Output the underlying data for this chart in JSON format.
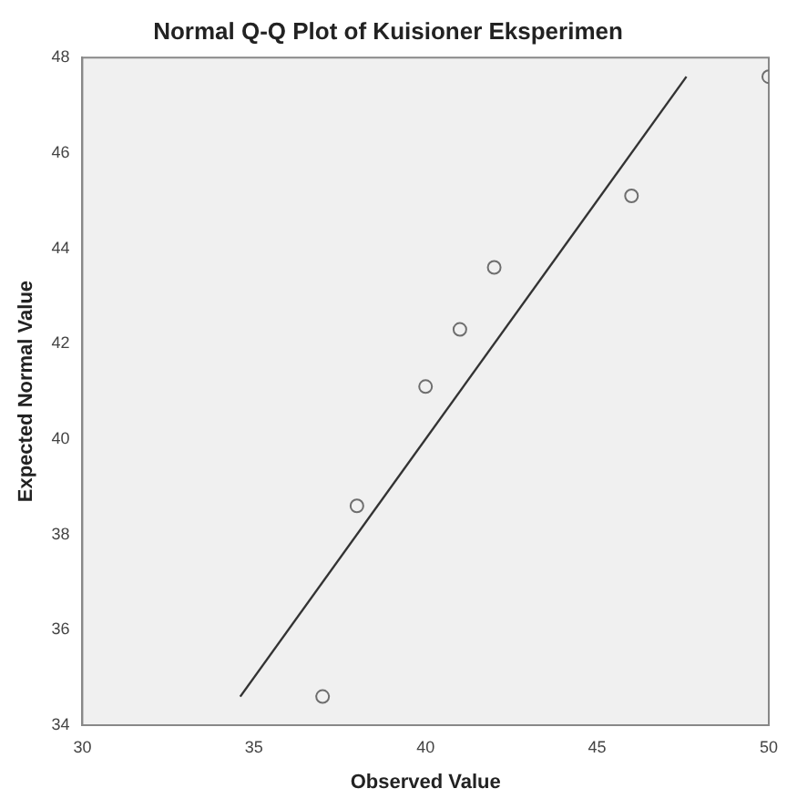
{
  "chart_data": {
    "type": "scatter",
    "title": "Normal Q-Q Plot of Kuisioner Eksperimen",
    "xlabel": "Observed Value",
    "ylabel": "Expected Normal Value",
    "xlim": [
      30,
      50
    ],
    "xticks": [
      30,
      35,
      40,
      45,
      50
    ],
    "ylim": [
      34,
      48
    ],
    "yticks": [
      34,
      36,
      38,
      40,
      42,
      44,
      46,
      48
    ],
    "grid": false,
    "legend": false,
    "marker": "circle",
    "series": [
      {
        "type": "scatter",
        "color": "#6e6e6e",
        "x": [
          37,
          38,
          40,
          41,
          42,
          46,
          50
        ],
        "values": [
          34.6,
          38.6,
          41.1,
          42.3,
          43.6,
          45.1,
          47.6
        ]
      },
      {
        "type": "line",
        "color": "#333333",
        "x": [
          34.6,
          47.6
        ],
        "values": [
          34.6,
          47.6
        ],
        "marker": "none",
        "line_style": "solid"
      }
    ]
  }
}
